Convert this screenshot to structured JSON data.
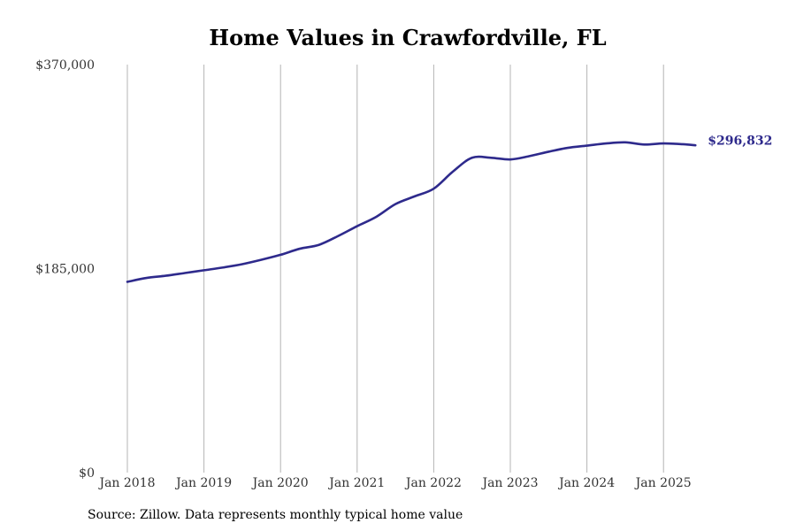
{
  "chart_data": {
    "type": "line",
    "title": "Home Values in Crawfordville, FL",
    "xlabel": "",
    "ylabel": "",
    "ylim": [
      0,
      370000
    ],
    "xlim": [
      "2018-01",
      "2025-06"
    ],
    "grid": "vertical",
    "line_color": "#2e2a8c",
    "grid_color": "#b4b4b4",
    "y_ticks": [
      {
        "value": 0,
        "label": "$0"
      },
      {
        "value": 185000,
        "label": "$185,000"
      },
      {
        "value": 370000,
        "label": "$370,000"
      }
    ],
    "x_ticks": [
      {
        "value": "2018-01",
        "label": "Jan 2018"
      },
      {
        "value": "2019-01",
        "label": "Jan 2019"
      },
      {
        "value": "2020-01",
        "label": "Jan 2020"
      },
      {
        "value": "2021-01",
        "label": "Jan 2021"
      },
      {
        "value": "2022-01",
        "label": "Jan 2022"
      },
      {
        "value": "2023-01",
        "label": "Jan 2023"
      },
      {
        "value": "2024-01",
        "label": "Jan 2024"
      },
      {
        "value": "2025-01",
        "label": "Jan 2025"
      }
    ],
    "end_label": "$296,832",
    "series": [
      {
        "x": [
          "2018-01",
          "2018-04",
          "2018-07",
          "2018-10",
          "2019-01",
          "2019-04",
          "2019-07",
          "2019-10",
          "2020-01",
          "2020-04",
          "2020-07",
          "2020-10",
          "2021-01",
          "2021-04",
          "2021-07",
          "2021-10",
          "2022-01",
          "2022-04",
          "2022-07",
          "2022-10",
          "2023-01",
          "2023-04",
          "2023-07",
          "2023-10",
          "2024-01",
          "2024-04",
          "2024-07",
          "2024-10",
          "2025-01",
          "2025-04",
          "2025-06"
        ],
        "values": [
          173000,
          176500,
          178500,
          181000,
          183500,
          186000,
          189000,
          193000,
          197500,
          203000,
          206500,
          214500,
          223500,
          232000,
          243500,
          250500,
          257500,
          273000,
          285500,
          285500,
          284000,
          287000,
          291000,
          294500,
          296500,
          298500,
          299500,
          297500,
          298500,
          297800,
          296832
        ]
      }
    ]
  },
  "footer": {
    "source": "Source: Zillow. Data represents monthly typical home value"
  }
}
